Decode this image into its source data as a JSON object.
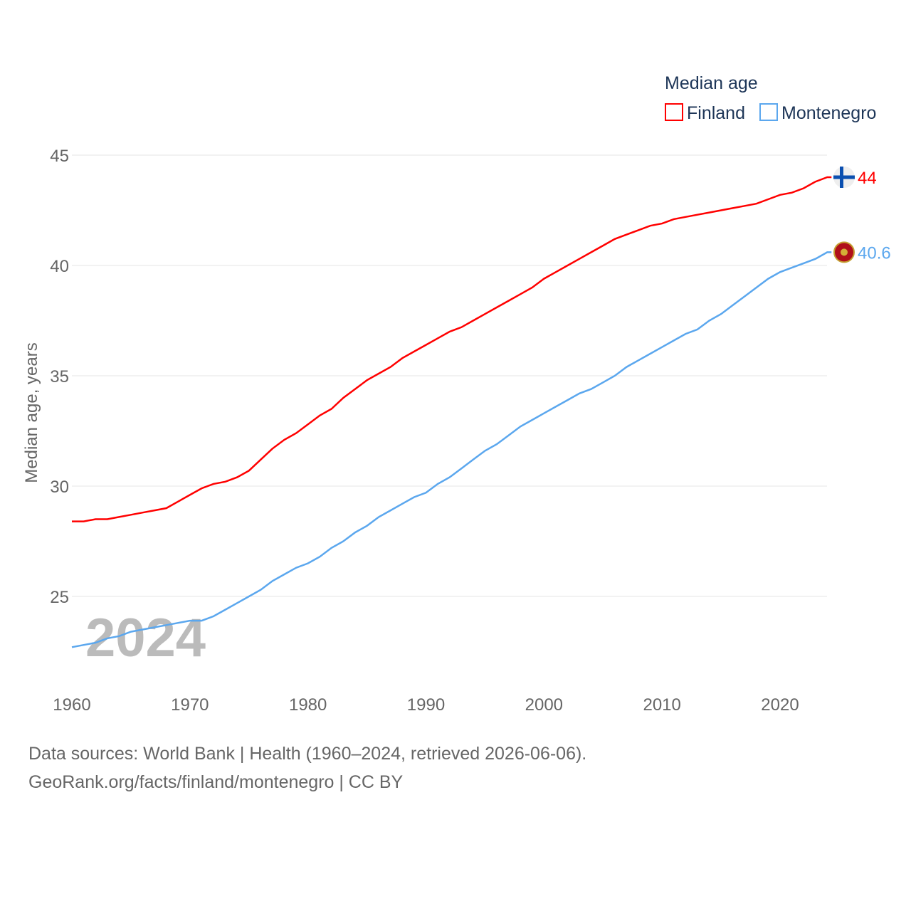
{
  "chart_data": {
    "type": "line",
    "legend_title": "Median age",
    "legend_position": "top-right",
    "ylabel": "Median age, years",
    "xlabel": "",
    "ylim": [
      21,
      46
    ],
    "xlim": [
      1960,
      2024
    ],
    "yticks": [
      25,
      30,
      35,
      40,
      45
    ],
    "xticks": [
      1960,
      1970,
      1980,
      1990,
      2000,
      2010,
      2020
    ],
    "grid": true,
    "year_label": "2024",
    "x": [
      1960,
      1961,
      1962,
      1963,
      1964,
      1965,
      1966,
      1967,
      1968,
      1969,
      1970,
      1971,
      1972,
      1973,
      1974,
      1975,
      1976,
      1977,
      1978,
      1979,
      1980,
      1981,
      1982,
      1983,
      1984,
      1985,
      1986,
      1987,
      1988,
      1989,
      1990,
      1991,
      1992,
      1993,
      1994,
      1995,
      1996,
      1997,
      1998,
      1999,
      2000,
      2001,
      2002,
      2003,
      2004,
      2005,
      2006,
      2007,
      2008,
      2009,
      2010,
      2011,
      2012,
      2013,
      2014,
      2015,
      2016,
      2017,
      2018,
      2019,
      2020,
      2021,
      2022,
      2023,
      2024
    ],
    "series": [
      {
        "name": "Finland",
        "color": "#ff0000",
        "end_label": "44",
        "values": [
          28.4,
          28.4,
          28.5,
          28.5,
          28.6,
          28.7,
          28.8,
          28.9,
          29.0,
          29.3,
          29.6,
          29.9,
          30.1,
          30.2,
          30.4,
          30.7,
          31.2,
          31.7,
          32.1,
          32.4,
          32.8,
          33.2,
          33.5,
          34.0,
          34.4,
          34.8,
          35.1,
          35.4,
          35.8,
          36.1,
          36.4,
          36.7,
          37.0,
          37.2,
          37.5,
          37.8,
          38.1,
          38.4,
          38.7,
          39.0,
          39.4,
          39.7,
          40.0,
          40.3,
          40.6,
          40.9,
          41.2,
          41.4,
          41.6,
          41.8,
          41.9,
          42.1,
          42.2,
          42.3,
          42.4,
          42.5,
          42.6,
          42.7,
          42.8,
          43.0,
          43.2,
          43.3,
          43.5,
          43.8,
          44.0
        ]
      },
      {
        "name": "Montenegro",
        "color": "#5ba7ee",
        "end_label": "40.6",
        "values": [
          22.7,
          22.8,
          22.9,
          23.1,
          23.2,
          23.4,
          23.5,
          23.6,
          23.7,
          23.8,
          23.9,
          23.9,
          24.1,
          24.4,
          24.7,
          25.0,
          25.3,
          25.7,
          26.0,
          26.3,
          26.5,
          26.8,
          27.2,
          27.5,
          27.9,
          28.2,
          28.6,
          28.9,
          29.2,
          29.5,
          29.7,
          30.1,
          30.4,
          30.8,
          31.2,
          31.6,
          31.9,
          32.3,
          32.7,
          33.0,
          33.3,
          33.6,
          33.9,
          34.2,
          34.4,
          34.7,
          35.0,
          35.4,
          35.7,
          36.0,
          36.3,
          36.6,
          36.9,
          37.1,
          37.5,
          37.8,
          38.2,
          38.6,
          39.0,
          39.4,
          39.7,
          39.9,
          40.1,
          40.3,
          40.6
        ]
      }
    ]
  },
  "footer": {
    "line1": "Data sources: World Bank | Health (1960–2024, retrieved 2026-06-06).",
    "line2": "GeoRank.org/facts/finland/montenegro | CC BY"
  }
}
